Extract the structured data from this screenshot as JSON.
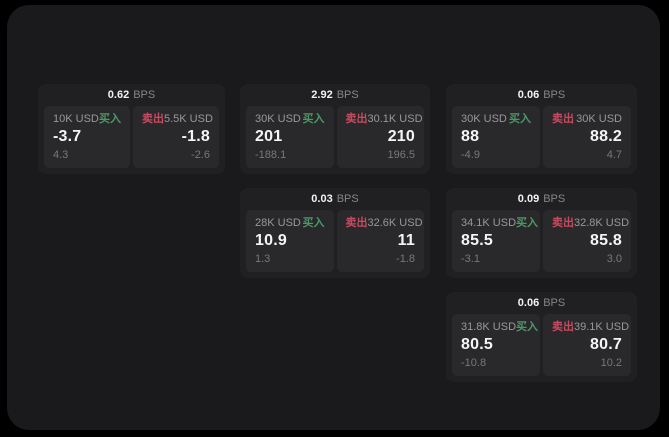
{
  "labels": {
    "bps_unit": "BPS",
    "buy": "买入",
    "sell": "卖出"
  },
  "colors": {
    "buy": "#4d9865",
    "sell": "#c9495f",
    "frame_bg": "#1a1a1c",
    "card_bg": "#202023",
    "panel_bg": "#29292c"
  },
  "cards": [
    {
      "bps": "0.62",
      "buy": {
        "amount": "10K USD",
        "price": "-3.7",
        "change": "4.3"
      },
      "sell": {
        "amount": "5.5K USD",
        "price": "-1.8",
        "change": "-2.6"
      }
    },
    {
      "bps": "2.92",
      "buy": {
        "amount": "30K USD",
        "price": "201",
        "change": "-188.1"
      },
      "sell": {
        "amount": "30.1K USD",
        "price": "210",
        "change": "196.5"
      }
    },
    {
      "bps": "0.06",
      "buy": {
        "amount": "30K USD",
        "price": "88",
        "change": "-4.9"
      },
      "sell": {
        "amount": "30K USD",
        "price": "88.2",
        "change": "4.7"
      }
    },
    {
      "bps": "0.03",
      "buy": {
        "amount": "28K USD",
        "price": "10.9",
        "change": "1.3"
      },
      "sell": {
        "amount": "32.6K USD",
        "price": "11",
        "change": "-1.8"
      }
    },
    {
      "bps": "0.09",
      "buy": {
        "amount": "34.1K USD",
        "price": "85.5",
        "change": "-3.1"
      },
      "sell": {
        "amount": "32.8K USD",
        "price": "85.8",
        "change": "3.0"
      }
    },
    {
      "bps": "0.06",
      "buy": {
        "amount": "31.8K USD",
        "price": "80.5",
        "change": "-10.8"
      },
      "sell": {
        "amount": "39.1K USD",
        "price": "80.7",
        "change": "10.2"
      }
    }
  ]
}
